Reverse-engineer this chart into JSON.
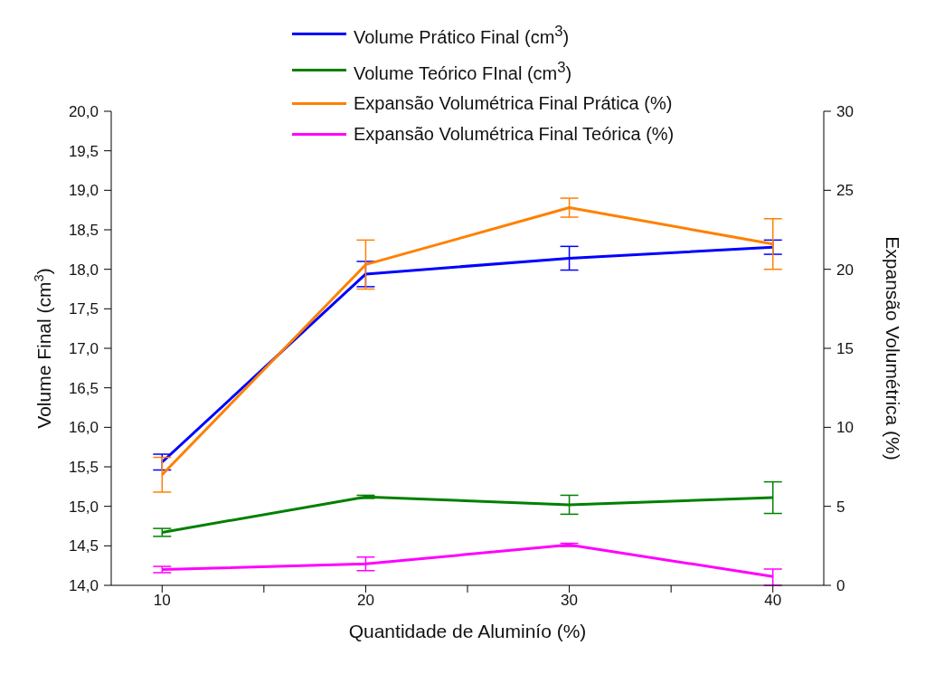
{
  "chart_data": {
    "type": "line",
    "xlabel": "Quantidade de Aluminío (%)",
    "ylabel": "Volume Final (cm$^{3}$)",
    "y2label": "Expansão Volumétrica (%)",
    "x": [
      10,
      20,
      30,
      40
    ],
    "xlim": [
      7.5,
      42.5
    ],
    "xticks": [
      10,
      {
        "value": 15,
        "label": null
      },
      20,
      {
        "value": 25,
        "label": null
      },
      30,
      {
        "value": 35,
        "label": null
      },
      40
    ],
    "ylim": [
      14,
      20
    ],
    "yticks": [
      {
        "value": 14,
        "label": "14,0"
      },
      {
        "value": 14.5,
        "label": "14,5"
      },
      {
        "value": 15,
        "label": "15,0"
      },
      {
        "value": 15.5,
        "label": "15,5"
      },
      {
        "value": 16,
        "label": "16,0"
      },
      {
        "value": 16.5,
        "label": "16,5"
      },
      {
        "value": 17,
        "label": "17,0"
      },
      {
        "value": 17.5,
        "label": "17,5"
      },
      {
        "value": 18,
        "label": "18,0"
      },
      {
        "value": 18.5,
        "label": "18,5"
      },
      {
        "value": 19,
        "label": "19,0"
      },
      {
        "value": 19.5,
        "label": "19,5"
      },
      {
        "value": 20,
        "label": "20,0"
      }
    ],
    "y2lim": [
      0,
      30
    ],
    "y2ticks": [
      0,
      5,
      10,
      15,
      20,
      25,
      30
    ],
    "series": [
      {
        "name": "Volume Prático Final (cm$^{3}$)",
        "color": "#0000ff",
        "values": [
          15.56,
          17.94,
          18.14,
          18.28
        ],
        "errors": [
          0.1,
          0.16,
          0.15,
          0.09
        ]
      },
      {
        "name": "Volume Teórico FInal (cm$^{3}$)",
        "color": "#008000",
        "values": [
          14.67,
          15.12,
          15.02,
          15.11
        ],
        "errors": [
          0.05,
          0.02,
          0.12,
          0.2
        ]
      },
      {
        "name": "Expansão Volumétrica Final Prática  (%)",
        "color": "#ff8000",
        "axis": "y2",
        "values": [
          7.0,
          20.3,
          23.9,
          21.6
        ],
        "errors": [
          1.1,
          1.55,
          0.6,
          1.6
        ]
      },
      {
        "name": "Expansão Volumétrica Final Teórica  (%)",
        "color": "#ff00ff",
        "axis": "y2",
        "values": [
          1.0,
          1.36,
          2.56,
          0.56
        ],
        "errors": [
          0.2,
          0.43,
          0.1,
          [
            0,
            1.03
          ]
        ]
      }
    ],
    "legend": "top",
    "grid": false,
    "marker": "none",
    "line_style": "solid"
  }
}
